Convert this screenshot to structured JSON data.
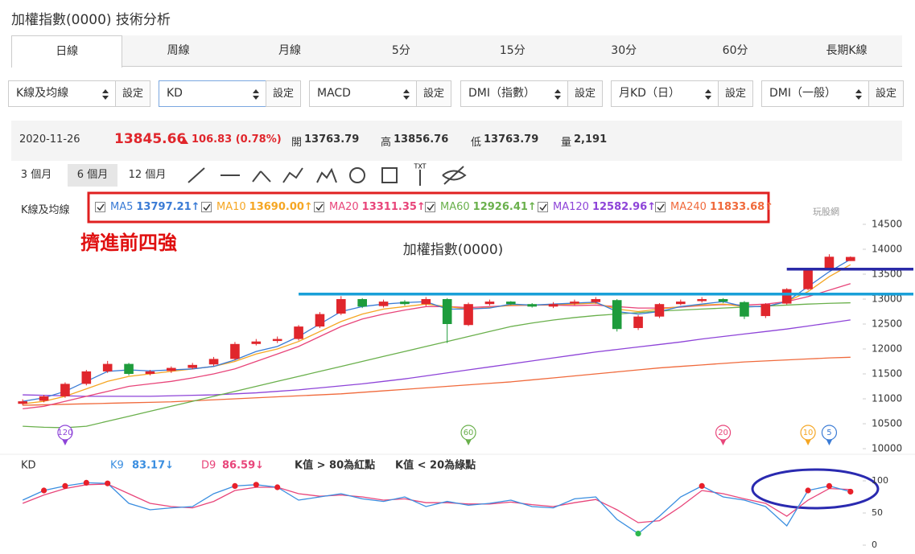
{
  "header": {
    "title": "加權指數(0000) 技術分析"
  },
  "tabs": [
    "日線",
    "周線",
    "月線",
    "5分",
    "15分",
    "30分",
    "60分",
    "長期K線"
  ],
  "selected_tab": 0,
  "selectors": [
    {
      "value": "K線及均線",
      "button": "設定"
    },
    {
      "value": "KD",
      "button": "設定"
    },
    {
      "value": "MACD",
      "button": "設定"
    },
    {
      "value": "DMI（指數）",
      "button": "設定"
    },
    {
      "value": "月KD（日）",
      "button": "設定"
    },
    {
      "value": "DMI（一般）",
      "button": "設定"
    }
  ],
  "selected_selector": 1,
  "quote": {
    "date": "2020-11-26",
    "price": 13845.66,
    "change": "106.83 (0.78%)",
    "stats": [
      {
        "label": "開",
        "value": 13763.79
      },
      {
        "label": "高",
        "value": 13856.76
      },
      {
        "label": "低",
        "value": 13763.79
      },
      {
        "label": "量",
        "value": "2,191"
      }
    ]
  },
  "ranges": [
    "3 個月",
    "6 個月",
    "12 個月"
  ],
  "selected_range": 1,
  "tool_text": "TXT",
  "watermark": "玩股網",
  "legend_label": "K線及均線",
  "annotation": "擠進前四強",
  "chart_data": [
    {
      "type": "candlestick",
      "title": "加權指數(0000)",
      "up_color": "#e0262c",
      "down_color": "#1e9c3c",
      "open": [
        10900,
        10960,
        11050,
        11300,
        11550,
        11700,
        11500,
        11560,
        11620,
        11690,
        11800,
        12100,
        12160,
        12200,
        12450,
        12710,
        13000,
        12860,
        12950,
        12900,
        13000,
        12480,
        12900,
        12950,
        12900,
        12850,
        12910,
        12940,
        12980,
        12420,
        12650,
        12900,
        12960,
        13000,
        12940,
        12660,
        12910,
        13200,
        13620,
        13763.79
      ],
      "high": [
        10990,
        11080,
        11330,
        11580,
        11760,
        11720,
        11580,
        11650,
        11720,
        11840,
        12140,
        12200,
        12250,
        12480,
        12740,
        13060,
        13020,
        12990,
        12980,
        13040,
        13020,
        12930,
        12990,
        12960,
        12920,
        12940,
        12990,
        13040,
        13000,
        12680,
        12920,
        12990,
        13040,
        13020,
        12960,
        12920,
        13220,
        13620,
        13900,
        13856.76
      ],
      "low": [
        10870,
        10930,
        11020,
        11270,
        11520,
        11470,
        11470,
        11520,
        11590,
        11660,
        11770,
        12070,
        12120,
        12170,
        12420,
        12680,
        12820,
        12830,
        12870,
        12860,
        12120,
        12460,
        12870,
        12880,
        12830,
        12820,
        12880,
        12910,
        12350,
        12380,
        12620,
        12880,
        12930,
        12920,
        12600,
        12620,
        12890,
        13180,
        13600,
        13763.79
      ],
      "close": [
        10950,
        11050,
        11300,
        11550,
        11700,
        11500,
        11550,
        11620,
        11680,
        11800,
        12100,
        12150,
        12200,
        12450,
        12700,
        13000,
        12850,
        12950,
        12900,
        13000,
        12500,
        12900,
        12950,
        12900,
        12850,
        12900,
        12950,
        13000,
        12400,
        12650,
        12900,
        12950,
        13000,
        12950,
        12650,
        12900,
        13200,
        13600,
        13850,
        13845.66
      ],
      "series": [
        {
          "name": "MA5",
          "color": "#3a7bd5",
          "value_label": "13797.21↑",
          "values": [
            10950,
            11020,
            11150,
            11350,
            11550,
            11580,
            11560,
            11580,
            11600,
            11650,
            11780,
            11950,
            12050,
            12250,
            12500,
            12750,
            12850,
            12900,
            12930,
            12950,
            12800,
            12800,
            12820,
            12900,
            12880,
            12900,
            12920,
            12940,
            12750,
            12700,
            12750,
            12850,
            12900,
            12950,
            12850,
            12850,
            12950,
            13250,
            13550,
            13797.21
          ]
        },
        {
          "name": "MA10",
          "color": "#f5a623",
          "value_label": "13690.00↑",
          "values": [
            10900,
            10950,
            11050,
            11200,
            11350,
            11450,
            11500,
            11550,
            11600,
            11650,
            11750,
            11900,
            12000,
            12150,
            12350,
            12550,
            12700,
            12800,
            12850,
            12900,
            12850,
            12800,
            12830,
            12880,
            12880,
            12890,
            12900,
            12920,
            12800,
            12750,
            12800,
            12850,
            12880,
            12900,
            12850,
            12850,
            12950,
            13150,
            13450,
            13690
          ]
        },
        {
          "name": "MA20",
          "color": "#e8457a",
          "value_label": "13311.35↑",
          "values": [
            10800,
            10850,
            10950,
            11050,
            11150,
            11250,
            11300,
            11350,
            11420,
            11500,
            11600,
            11750,
            11900,
            12050,
            12250,
            12450,
            12600,
            12700,
            12780,
            12850,
            12850,
            12830,
            12850,
            12870,
            12880,
            12880,
            12870,
            12880,
            12850,
            12820,
            12820,
            12840,
            12870,
            12890,
            12880,
            12900,
            12950,
            13050,
            13180,
            13311.35
          ]
        },
        {
          "name": "MA60",
          "color": "#6ab04c",
          "value_label": "12926.41↑",
          "values": [
            10450,
            10430,
            10420,
            10450,
            10550,
            10650,
            10750,
            10850,
            10950,
            11050,
            11150,
            11250,
            11350,
            11450,
            11550,
            11650,
            11750,
            11850,
            11950,
            12050,
            12150,
            12250,
            12350,
            12450,
            12520,
            12580,
            12630,
            12670,
            12700,
            12730,
            12760,
            12780,
            12800,
            12820,
            12840,
            12860,
            12880,
            12900,
            12915,
            12926.41
          ]
        },
        {
          "name": "MA120",
          "color": "#8e44d8",
          "value_label": "12582.96↑",
          "values": [
            11080,
            11070,
            11060,
            11050,
            11050,
            11050,
            11050,
            11060,
            11070,
            11080,
            11100,
            11120,
            11150,
            11180,
            11220,
            11260,
            11300,
            11350,
            11400,
            11460,
            11520,
            11580,
            11640,
            11700,
            11760,
            11820,
            11880,
            11940,
            11990,
            12040,
            12090,
            12140,
            12200,
            12250,
            12300,
            12350,
            12400,
            12460,
            12520,
            12582.96
          ]
        },
        {
          "name": "MA240",
          "color": "#f06a3c",
          "value_label": "11833.68↑",
          "values": [
            10870,
            10880,
            10890,
            10900,
            10910,
            10920,
            10930,
            10940,
            10960,
            10980,
            11000,
            11020,
            11040,
            11060,
            11080,
            11100,
            11130,
            11160,
            11190,
            11220,
            11250,
            11280,
            11310,
            11340,
            11380,
            11420,
            11460,
            11500,
            11540,
            11580,
            11620,
            11650,
            11680,
            11710,
            11740,
            11760,
            11780,
            11800,
            11820,
            11833.68
          ]
        }
      ],
      "markers": [
        {
          "value": 120,
          "index": 2,
          "color": "#8e44d8"
        },
        {
          "value": 60,
          "index": 21,
          "color": "#6ab04c"
        },
        {
          "value": 20,
          "index": 33,
          "color": "#e8457a"
        },
        {
          "value": 10,
          "index": 37,
          "color": "#f5a623"
        },
        {
          "value": 5,
          "index": 38,
          "color": "#3a7bd5"
        }
      ],
      "hlines": [
        {
          "value": 13100,
          "from_index": 13,
          "color": "#1aa0d8"
        },
        {
          "value": 13600,
          "from_index": 36,
          "color": "#2a2aa8"
        }
      ],
      "ylim": [
        9900,
        14600
      ],
      "yticks": [
        10000,
        10500,
        11000,
        11500,
        12000,
        12500,
        13000,
        13500,
        14000,
        14500
      ]
    },
    {
      "type": "line",
      "title": "KD",
      "notes": [
        "K值 > 80為紅點",
        "K值 < 20為綠點"
      ],
      "high_threshold": 80,
      "low_threshold": 20,
      "high_dot_color": "#e8202a",
      "low_dot_color": "#2db84d",
      "series": [
        {
          "name": "K9",
          "color": "#3a8ee0",
          "value_label": "83.17↓",
          "values": [
            70,
            85,
            92,
            97,
            96,
            65,
            55,
            58,
            60,
            80,
            92,
            94,
            90,
            70,
            75,
            80,
            72,
            68,
            75,
            60,
            68,
            62,
            65,
            70,
            60,
            58,
            72,
            75,
            40,
            18,
            45,
            75,
            92,
            75,
            70,
            60,
            30,
            85,
            92,
            83.17
          ]
        },
        {
          "name": "D9",
          "color": "#e8457a",
          "value_label": "86.59↓",
          "values": [
            65,
            78,
            88,
            94,
            95,
            80,
            65,
            60,
            58,
            68,
            85,
            90,
            90,
            80,
            76,
            78,
            75,
            70,
            72,
            66,
            66,
            64,
            64,
            67,
            63,
            60,
            66,
            71,
            55,
            35,
            38,
            60,
            85,
            80,
            72,
            65,
            45,
            70,
            88,
            86.59
          ]
        }
      ],
      "ylim": [
        -8,
        110
      ],
      "yticks": [
        0,
        50,
        100
      ]
    }
  ]
}
